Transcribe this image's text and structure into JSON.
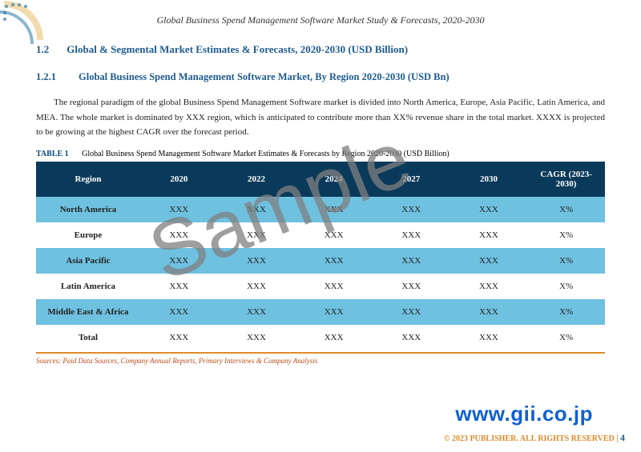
{
  "header": {
    "title": "Global Business Spend Management Software Market Study & Forecasts, 2020-2030"
  },
  "section": {
    "num": "1.2",
    "title": "Global & Segmental Market Estimates & Forecasts, 2020-2030 (USD Billion)"
  },
  "subsection": {
    "num": "1.2.1",
    "title": "Global Business Spend Management Software Market, By Region 2020-2030 (USD Bn)"
  },
  "body": "The regional paradigm of the global Business Spend Management Software market is divided into North America, Europe, Asia Pacific, Latin America, and MEA. The whole market is dominated by XXX region, which is anticipated to contribute more than XX% revenue share in the total market. XXXX is projected to be growing at the highest CAGR over the forecast period.",
  "table": {
    "label": "TABLE 1",
    "caption": "Global Business Spend Management Software Market Estimates & Forecasts by Region 2020-2030 (USD Billion)",
    "columns": [
      "Region",
      "2020",
      "2022",
      "2024",
      "2027",
      "2030",
      "CAGR (2023-2030)"
    ],
    "rows": [
      {
        "cells": [
          "North America",
          "XXX",
          "XXX",
          "XXX",
          "XXX",
          "XXX",
          "X%"
        ],
        "alt": true
      },
      {
        "cells": [
          "Europe",
          "XXX",
          "XXX",
          "XXX",
          "XXX",
          "XXX",
          "X%"
        ],
        "alt": false
      },
      {
        "cells": [
          "Asia Pacific",
          "XXX",
          "XXX",
          "XXX",
          "XXX",
          "XXX",
          "X%"
        ],
        "alt": true
      },
      {
        "cells": [
          "Latin America",
          "XXX",
          "XXX",
          "XXX",
          "XXX",
          "XXX",
          "X%"
        ],
        "alt": false
      },
      {
        "cells": [
          "Middle East & Africa",
          "XXX",
          "XXX",
          "XXX",
          "XXX",
          "XXX",
          "X%"
        ],
        "alt": true
      },
      {
        "cells": [
          "Total",
          "XXX",
          "XXX",
          "XXX",
          "XXX",
          "XXX",
          "X%"
        ],
        "alt": false
      }
    ],
    "header_bg": "#0a3a5a",
    "alt_bg": "#6fc1e0"
  },
  "sources": "Sources: Paid Data Sources, Company Annual Reports, Primary Interviews & Company Analysis",
  "overlay_url": "www.gii.co.jp",
  "watermark": "Sample",
  "footer": {
    "copyright": "© 2023 PUBLISHER. ALL RIGHTS RESERVED |",
    "page": "4"
  },
  "colors": {
    "heading": "#1e5b8f",
    "accent": "#e08a2a",
    "link": "#1060d0"
  }
}
